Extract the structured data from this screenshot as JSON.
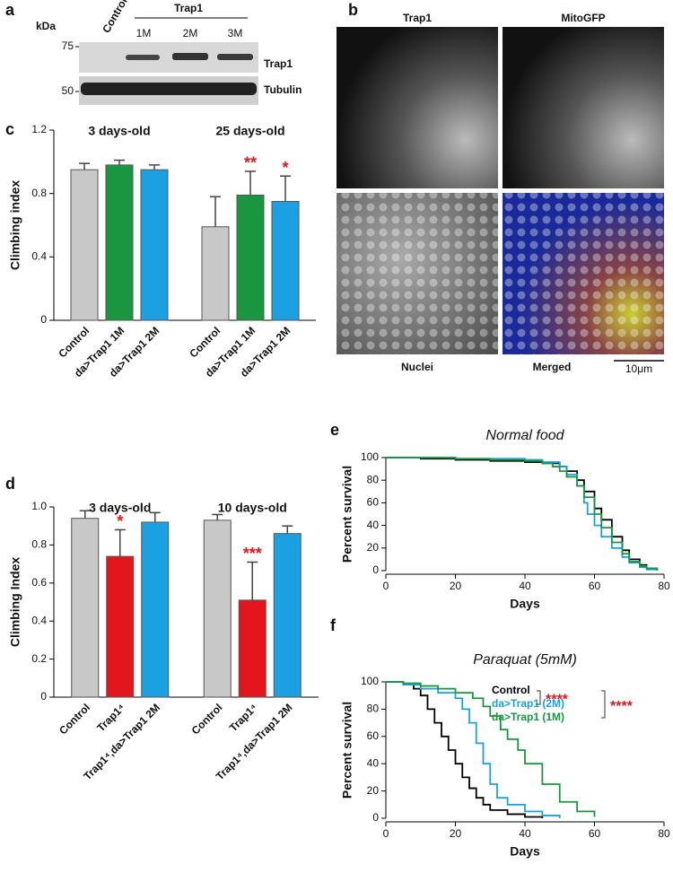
{
  "blot": {
    "label": "a",
    "unit": "kDa",
    "lanes": [
      "Control",
      "1M",
      "2M",
      "3M"
    ],
    "group": "Trap1",
    "markers": [
      75,
      50
    ],
    "bands": [
      "Trap1",
      "Tubulin"
    ]
  },
  "images": {
    "label": "b",
    "titles": [
      "Trap1",
      "MitoGFP",
      "Nuclei",
      "Merged"
    ],
    "scale_bar": "10μm"
  },
  "chart_data": [
    {
      "type": "bar",
      "label": "c",
      "ylabel": "Climbing index",
      "colors": [
        "#c8c8c8",
        "#1a9641",
        "#1ba1e2"
      ],
      "groups": [
        {
          "name": "3 days-old",
          "categories": [
            "Control",
            "da>Trap1 1M",
            "da>Trap1 2M"
          ],
          "values": [
            0.95,
            0.98,
            0.95
          ],
          "errors": [
            0.04,
            0.03,
            0.03
          ],
          "annotations": [
            null,
            null,
            null
          ]
        },
        {
          "name": "25 days-old",
          "categories": [
            "Control",
            "da>Trap1 1M",
            "da>Trap1 2M"
          ],
          "values": [
            0.59,
            0.79,
            0.75
          ],
          "errors": [
            0.19,
            0.15,
            0.16
          ],
          "annotations": [
            null,
            "**",
            "*"
          ]
        }
      ],
      "ylim": [
        0,
        1.2
      ],
      "yticks": [
        0,
        0.4,
        0.8,
        1.2
      ]
    },
    {
      "type": "bar",
      "label": "d",
      "ylabel": "Climbing Index",
      "colors": [
        "#c8c8c8",
        "#e3161c",
        "#1ba1e2"
      ],
      "groups": [
        {
          "name": "3 days-old",
          "categories": [
            "Control",
            "Trap1⁴",
            "Trap1⁴,da>Trap1 2M"
          ],
          "values": [
            0.94,
            0.74,
            0.92
          ],
          "errors": [
            0.04,
            0.14,
            0.05
          ],
          "annotations": [
            null,
            "*",
            null
          ]
        },
        {
          "name": "10 days-old",
          "categories": [
            "Control",
            "Trap1⁴",
            "Trap1⁴,da>Trap1 2M"
          ],
          "values": [
            0.93,
            0.51,
            0.86
          ],
          "errors": [
            0.03,
            0.2,
            0.04
          ],
          "annotations": [
            null,
            "***",
            null
          ]
        }
      ],
      "ylim": [
        0,
        1
      ],
      "yticks": [
        0,
        0.2,
        0.4,
        0.6,
        0.8,
        {
          "value": 1,
          "label": "1.0"
        }
      ]
    },
    {
      "type": "line",
      "step": true,
      "label": "e",
      "title": "Normal food",
      "xlabel": "Days",
      "ylabel": "Percent survival",
      "series": [
        {
          "color": "#000000",
          "x": [
            0,
            10,
            20,
            30,
            40,
            45,
            50,
            52,
            55,
            57,
            60,
            62,
            65,
            68,
            70,
            73,
            75,
            78
          ],
          "values": [
            100,
            99,
            98,
            97,
            96,
            95,
            92,
            88,
            80,
            70,
            55,
            45,
            30,
            18,
            10,
            5,
            2,
            0
          ]
        },
        {
          "color": "#1ba1e2",
          "x": [
            0,
            10,
            20,
            30,
            40,
            45,
            50,
            52,
            55,
            57,
            58,
            60,
            62,
            65,
            68,
            70,
            73,
            75,
            78
          ],
          "values": [
            100,
            100,
            99,
            99,
            98,
            96,
            92,
            85,
            75,
            60,
            50,
            40,
            30,
            20,
            12,
            7,
            3,
            1,
            0
          ]
        },
        {
          "color": "#1a9641",
          "x": [
            0,
            10,
            20,
            30,
            40,
            45,
            48,
            50,
            52,
            55,
            57,
            60,
            62,
            65,
            68,
            70,
            73,
            75,
            78
          ],
          "values": [
            100,
            100,
            99,
            98,
            97,
            95,
            92,
            88,
            83,
            75,
            65,
            50,
            38,
            25,
            15,
            8,
            4,
            2,
            0
          ]
        }
      ],
      "xlim": [
        0,
        80
      ],
      "xticks": [
        0,
        20,
        40,
        60,
        80
      ],
      "ylim": [
        0,
        100
      ],
      "yticks": [
        0,
        20,
        40,
        60,
        80,
        100
      ]
    },
    {
      "type": "line",
      "step": true,
      "label": "f",
      "title": "Paraquat (5mM)",
      "xlabel": "Days",
      "ylabel": "Percent survival",
      "series": [
        {
          "name": "Control",
          "color": "#000000",
          "x": [
            0,
            5,
            8,
            10,
            12,
            14,
            16,
            18,
            20,
            22,
            24,
            26,
            28,
            30,
            35,
            40,
            45
          ],
          "values": [
            100,
            98,
            95,
            90,
            80,
            70,
            60,
            50,
            40,
            30,
            22,
            15,
            10,
            6,
            3,
            1,
            0
          ]
        },
        {
          "name": "da>Trap1 (2M)",
          "color": "#1ba1e2",
          "x": [
            0,
            5,
            10,
            15,
            20,
            22,
            24,
            26,
            28,
            30,
            32,
            35,
            40,
            45,
            50
          ],
          "values": [
            100,
            98,
            95,
            92,
            88,
            80,
            70,
            55,
            40,
            25,
            15,
            10,
            5,
            2,
            0
          ]
        },
        {
          "name": "da>Trap1 (1M)",
          "color": "#1a9641",
          "x": [
            0,
            5,
            10,
            15,
            20,
            25,
            28,
            30,
            33,
            35,
            38,
            40,
            45,
            50,
            55,
            60
          ],
          "values": [
            100,
            99,
            97,
            95,
            92,
            88,
            82,
            75,
            65,
            58,
            50,
            40,
            25,
            12,
            5,
            1
          ]
        }
      ],
      "annotations": [
        "****",
        "****"
      ],
      "xlim": [
        0,
        80
      ],
      "xticks": [
        0,
        20,
        40,
        60,
        80
      ],
      "ylim": [
        0,
        100
      ],
      "yticks": [
        0,
        20,
        40,
        60,
        80,
        100
      ]
    }
  ]
}
